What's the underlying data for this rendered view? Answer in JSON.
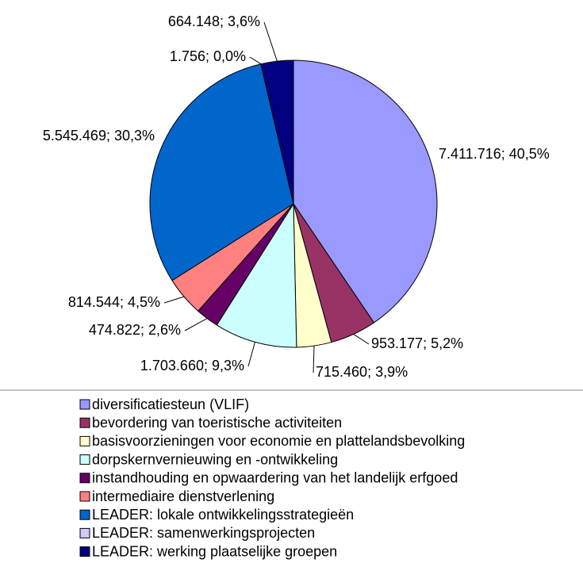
{
  "chart_data": {
    "type": "pie",
    "categories": [
      "diversificatiesteun (VLIF)",
      "bevordering van toeristische activiteiten",
      "basisvoorzieningen voor economie en plattelandsbevolking",
      "dorpskernvernieuwing en -ontwikkeling",
      "instandhouding en opwaardering van het landelijk erfgoed",
      "intermediaire dienstverlening",
      "LEADER: lokale ontwikkelingsstrategieën",
      "LEADER: samenwerkingsprojecten",
      "LEADER: werking plaatselijke groepen"
    ],
    "values": [
      7411716,
      953177,
      715460,
      1703660,
      474822,
      814544,
      5545469,
      1756,
      664148
    ],
    "value_labels": [
      "7.411.716; 40,5%",
      "953.177; 5,2%",
      "715.460; 3,9%",
      "1.703.660; 9,3%",
      "474.822; 2,6%",
      "814.544; 4,5%",
      "5.545.469; 30,3%",
      "1.756; 0,0%",
      "664.148; 3,6%"
    ],
    "colors": [
      "#9999ff",
      "#993366",
      "#ffffcc",
      "#ccffff",
      "#660066",
      "#ff8080",
      "#0066cc",
      "#ccccff",
      "#000080"
    ],
    "legend": "bottom"
  }
}
